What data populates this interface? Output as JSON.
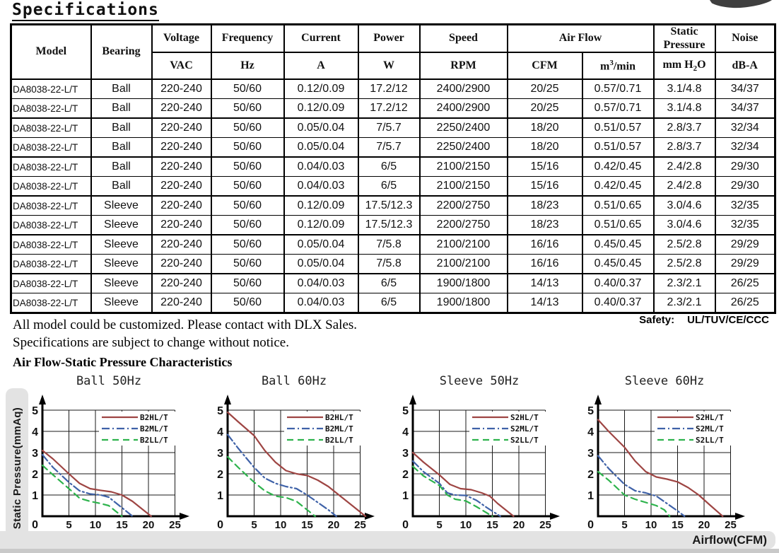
{
  "page": {
    "title": "Specifications",
    "notes": [
      "All model could be customized. Please contact with DLX Sales.",
      "Specifications are subject to change without notice."
    ],
    "safety_label": "Safety:",
    "safety_value": "UL/TUV/CE/CCC"
  },
  "table": {
    "header": {
      "model": "Model",
      "bearing": "Bearing",
      "voltage": "Voltage",
      "voltage_unit": "VAC",
      "frequency": "Frequency",
      "frequency_unit": "Hz",
      "current": "Current",
      "current_unit": "A",
      "power": "Power",
      "power_unit": "W",
      "speed": "Speed",
      "speed_unit": "RPM",
      "airflow": "Air Flow",
      "airflow_unit_cfm": "CFM",
      "airflow_unit_m3": {
        "pre": "m",
        "sup": "3",
        "post": "/min"
      },
      "static_pressure": "Static Pressure",
      "static_pressure_unit": {
        "pre": "mm H",
        "sub": "2",
        "post": "O"
      },
      "noise": "Noise",
      "noise_unit": "dB-A"
    },
    "rows": [
      [
        "DA8038-22-L/T",
        "Ball",
        "220-240",
        "50/60",
        "0.12/0.09",
        "17.2/12",
        "2400/2900",
        "20/25",
        "0.57/0.71",
        "3.1/4.8",
        "34/37"
      ],
      [
        "DA8038-22-L/T",
        "Ball",
        "220-240",
        "50/60",
        "0.12/0.09",
        "17.2/12",
        "2400/2900",
        "20/25",
        "0.57/0.71",
        "3.1/4.8",
        "34/37"
      ],
      [
        "DA8038-22-L/T",
        "Ball",
        "220-240",
        "50/60",
        "0.05/0.04",
        "7/5.7",
        "2250/2400",
        "18/20",
        "0.51/0.57",
        "2.8/3.7",
        "32/34"
      ],
      [
        "DA8038-22-L/T",
        "Ball",
        "220-240",
        "50/60",
        "0.05/0.04",
        "7/5.7",
        "2250/2400",
        "18/20",
        "0.51/0.57",
        "2.8/3.7",
        "32/34"
      ],
      [
        "DA8038-22-L/T",
        "Ball",
        "220-240",
        "50/60",
        "0.04/0.03",
        "6/5",
        "2100/2150",
        "15/16",
        "0.42/0.45",
        "2.4/2.8",
        "29/30"
      ],
      [
        "DA8038-22-L/T",
        "Ball",
        "220-240",
        "50/60",
        "0.04/0.03",
        "6/5",
        "2100/2150",
        "15/16",
        "0.42/0.45",
        "2.4/2.8",
        "29/30"
      ],
      [
        "DA8038-22-L/T",
        "Sleeve",
        "220-240",
        "50/60",
        "0.12/0.09",
        "17.5/12.3",
        "2200/2750",
        "18/23",
        "0.51/0.65",
        "3.0/4.6",
        "32/35"
      ],
      [
        "DA8038-22-L/T",
        "Sleeve",
        "220-240",
        "50/60",
        "0.12/0.09",
        "17.5/12.3",
        "2200/2750",
        "18/23",
        "0.51/0.65",
        "3.0/4.6",
        "32/35"
      ],
      [
        "DA8038-22-L/T",
        "Sleeve",
        "220-240",
        "50/60",
        "0.05/0.04",
        "7/5.8",
        "2100/2100",
        "16/16",
        "0.45/0.45",
        "2.5/2.8",
        "29/29"
      ],
      [
        "DA8038-22-L/T",
        "Sleeve",
        "220-240",
        "50/60",
        "0.05/0.04",
        "7/5.8",
        "2100/2100",
        "16/16",
        "0.45/0.45",
        "2.5/2.8",
        "29/29"
      ],
      [
        "DA8038-22-L/T",
        "Sleeve",
        "220-240",
        "50/60",
        "0.04/0.03",
        "6/5",
        "1900/1800",
        "14/13",
        "0.40/0.37",
        "2.3/2.1",
        "26/25"
      ],
      [
        "DA8038-22-L/T",
        "Sleeve",
        "220-240",
        "50/60",
        "0.04/0.03",
        "6/5",
        "1900/1800",
        "14/13",
        "0.40/0.37",
        "2.3/2.1",
        "26/25"
      ]
    ]
  },
  "charts_section": {
    "heading": "Air Flow-Static Pressure Characteristics",
    "ylabel": "Static Pressure(mmAq)",
    "xlabel": "Airflow(CFM)"
  },
  "chart_data": [
    {
      "type": "line",
      "title": "Ball 50Hz",
      "xlim": [
        0,
        25
      ],
      "ylim": [
        0,
        5
      ],
      "xticks": [
        0,
        5,
        10,
        15,
        20,
        25
      ],
      "yticks": [
        0,
        1,
        2,
        3,
        4,
        5
      ],
      "grid": true,
      "legend_position": "top-right",
      "series": [
        {
          "name": "B2HL/T",
          "color": "#9e4543",
          "style": "solid",
          "points": [
            [
              0,
              3.1
            ],
            [
              2,
              2.7
            ],
            [
              5,
              2.0
            ],
            [
              7,
              1.55
            ],
            [
              9,
              1.3
            ],
            [
              11,
              1.22
            ],
            [
              13,
              1.15
            ],
            [
              15,
              1.0
            ],
            [
              17,
              0.7
            ],
            [
              19,
              0.3
            ],
            [
              20.5,
              0
            ]
          ]
        },
        {
          "name": "B2ML/T",
          "color": "#3f62a8",
          "style": "dashdot",
          "points": [
            [
              0,
              2.9
            ],
            [
              2,
              2.3
            ],
            [
              5,
              1.6
            ],
            [
              7,
              1.2
            ],
            [
              9,
              1.05
            ],
            [
              11,
              1.0
            ],
            [
              12.5,
              0.9
            ],
            [
              14,
              0.6
            ],
            [
              15.5,
              0.3
            ],
            [
              17,
              0
            ]
          ]
        },
        {
          "name": "B2LL/T",
          "color": "#2eb34d",
          "style": "dash",
          "points": [
            [
              0,
              2.4
            ],
            [
              2,
              1.95
            ],
            [
              5,
              1.3
            ],
            [
              7,
              0.85
            ],
            [
              9,
              0.7
            ],
            [
              11,
              0.6
            ],
            [
              12.5,
              0.5
            ],
            [
              14,
              0.2
            ],
            [
              15,
              0
            ]
          ]
        }
      ]
    },
    {
      "type": "line",
      "title": "Ball 60Hz",
      "xlim": [
        0,
        25
      ],
      "ylim": [
        0,
        5
      ],
      "xticks": [
        0,
        5,
        10,
        15,
        20,
        25
      ],
      "yticks": [
        0,
        1,
        2,
        3,
        4,
        5
      ],
      "grid": true,
      "legend_position": "top-right",
      "series": [
        {
          "name": "B2HL/T",
          "color": "#9e4543",
          "style": "solid",
          "points": [
            [
              0,
              4.9
            ],
            [
              2,
              4.45
            ],
            [
              5,
              3.8
            ],
            [
              7,
              3.1
            ],
            [
              9,
              2.55
            ],
            [
              11,
              2.15
            ],
            [
              13,
              2.0
            ],
            [
              15,
              1.92
            ],
            [
              17,
              1.7
            ],
            [
              19,
              1.4
            ],
            [
              21,
              1.0
            ],
            [
              23.5,
              0.5
            ],
            [
              26,
              0
            ]
          ]
        },
        {
          "name": "B2ML/T",
          "color": "#3f62a8",
          "style": "dashdot",
          "points": [
            [
              0,
              3.85
            ],
            [
              2,
              3.2
            ],
            [
              5,
              2.3
            ],
            [
              7,
              1.8
            ],
            [
              9,
              1.55
            ],
            [
              11,
              1.4
            ],
            [
              13,
              1.3
            ],
            [
              15,
              1.0
            ],
            [
              17,
              0.65
            ],
            [
              19,
              0.3
            ],
            [
              20.5,
              0
            ]
          ]
        },
        {
          "name": "B2LL/T",
          "color": "#2eb34d",
          "style": "dash",
          "points": [
            [
              0,
              2.8
            ],
            [
              2,
              2.3
            ],
            [
              5,
              1.6
            ],
            [
              7,
              1.2
            ],
            [
              9,
              0.95
            ],
            [
              11,
              0.88
            ],
            [
              13,
              0.7
            ],
            [
              15,
              0.3
            ],
            [
              16.5,
              0
            ]
          ]
        }
      ]
    },
    {
      "type": "line",
      "title": "Sleeve 50Hz",
      "xlim": [
        0,
        25
      ],
      "ylim": [
        0,
        5
      ],
      "xticks": [
        0,
        5,
        10,
        15,
        20,
        25
      ],
      "yticks": [
        0,
        1,
        2,
        3,
        4,
        5
      ],
      "grid": true,
      "legend_position": "top-right",
      "series": [
        {
          "name": "S2HL/T",
          "color": "#9e4543",
          "style": "solid",
          "points": [
            [
              0,
              3.0
            ],
            [
              2,
              2.55
            ],
            [
              5,
              1.95
            ],
            [
              7,
              1.5
            ],
            [
              9,
              1.3
            ],
            [
              11,
              1.25
            ],
            [
              13,
              1.1
            ],
            [
              14.5,
              0.95
            ],
            [
              16,
              0.6
            ],
            [
              18,
              0.2
            ],
            [
              19,
              0
            ]
          ]
        },
        {
          "name": "S2ML/T",
          "color": "#3f62a8",
          "style": "dashdot",
          "points": [
            [
              0,
              2.6
            ],
            [
              2,
              2.1
            ],
            [
              5,
              1.55
            ],
            [
              6.5,
              1.1
            ],
            [
              8,
              1.0
            ],
            [
              10,
              0.98
            ],
            [
              12,
              0.75
            ],
            [
              14,
              0.4
            ],
            [
              16.5,
              0
            ]
          ]
        },
        {
          "name": "S2LL/T",
          "color": "#2eb34d",
          "style": "dash",
          "points": [
            [
              0,
              2.35
            ],
            [
              2,
              1.9
            ],
            [
              5,
              1.45
            ],
            [
              6.5,
              1.0
            ],
            [
              8,
              0.8
            ],
            [
              10,
              0.72
            ],
            [
              12,
              0.45
            ],
            [
              14,
              0.15
            ],
            [
              15,
              0
            ]
          ]
        }
      ]
    },
    {
      "type": "line",
      "title": "Sleeve 60Hz",
      "xlim": [
        0,
        25
      ],
      "ylim": [
        0,
        5
      ],
      "xticks": [
        0,
        5,
        10,
        15,
        20,
        25
      ],
      "yticks": [
        0,
        1,
        2,
        3,
        4,
        5
      ],
      "grid": true,
      "legend_position": "top-right",
      "series": [
        {
          "name": "S2HL/T",
          "color": "#9e4543",
          "style": "solid",
          "points": [
            [
              0,
              4.55
            ],
            [
              2,
              4.0
            ],
            [
              5,
              3.25
            ],
            [
              7,
              2.6
            ],
            [
              9,
              2.1
            ],
            [
              11,
              1.85
            ],
            [
              13,
              1.75
            ],
            [
              15,
              1.62
            ],
            [
              17,
              1.35
            ],
            [
              19,
              1.0
            ],
            [
              21,
              0.55
            ],
            [
              23.5,
              0
            ]
          ]
        },
        {
          "name": "S2ML/T",
          "color": "#3f62a8",
          "style": "dashdot",
          "points": [
            [
              0,
              2.85
            ],
            [
              2,
              2.25
            ],
            [
              5,
              1.5
            ],
            [
              7,
              1.2
            ],
            [
              9,
              1.1
            ],
            [
              11,
              0.95
            ],
            [
              13,
              0.6
            ],
            [
              15,
              0.25
            ],
            [
              16.3,
              0
            ]
          ]
        },
        {
          "name": "S2LL/T",
          "color": "#2eb34d",
          "style": "dash",
          "points": [
            [
              0,
              2.1
            ],
            [
              2,
              1.7
            ],
            [
              5,
              1.0
            ],
            [
              7,
              0.8
            ],
            [
              9,
              0.65
            ],
            [
              11,
              0.5
            ],
            [
              12.5,
              0.3
            ],
            [
              13.5,
              0
            ]
          ]
        }
      ]
    }
  ],
  "colors": {
    "high_speed_line": "#9e4543",
    "mid_speed_line": "#3f62a8",
    "low_speed_line": "#2eb34d",
    "axis": "#000000",
    "pill_background": "#e3e3e3",
    "bottom_strip": "#c9c9c9",
    "fan_photo": "#3f3f3f"
  }
}
